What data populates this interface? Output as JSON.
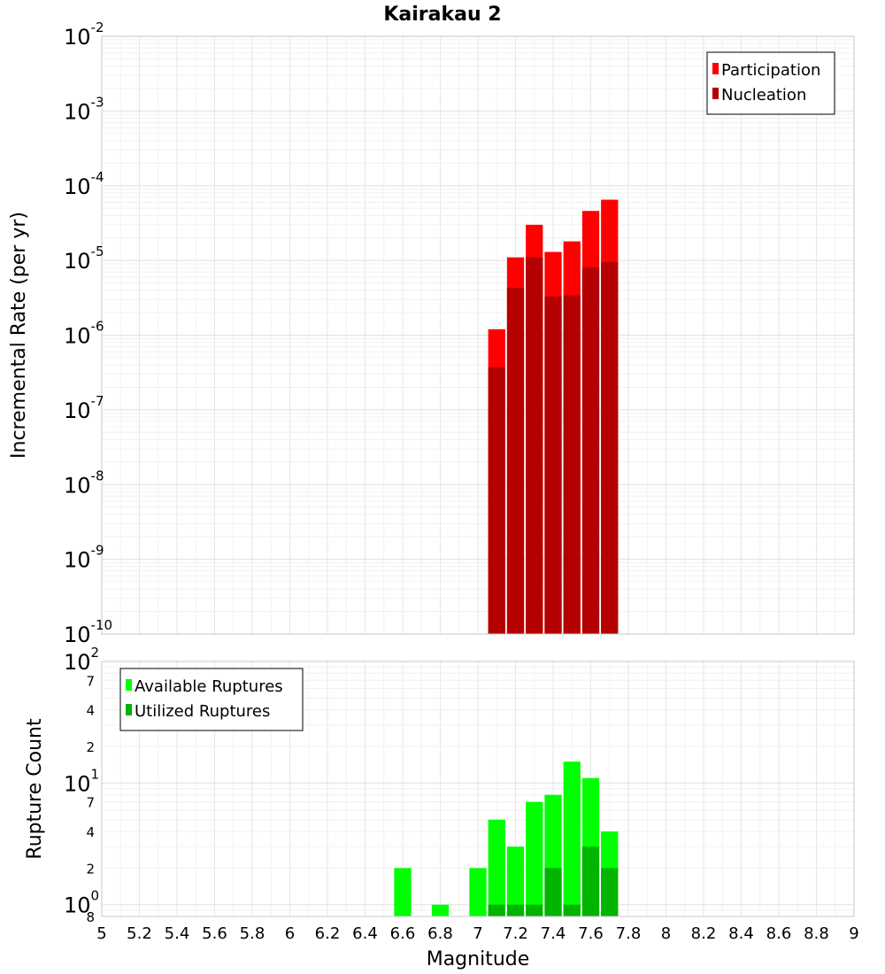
{
  "chart_data": [
    {
      "type": "bar",
      "title": "Kairakau 2",
      "ylabel": "Incremental Rate (per yr)",
      "xlabel": "",
      "x_scale": "linear",
      "y_scale": "log",
      "xlim": [
        5,
        9
      ],
      "ylim": [
        1e-10,
        0.01
      ],
      "bar_width": 0.1,
      "grid": true,
      "legend_position": "top-right",
      "y_tick_bases": [
        "10",
        "10",
        "10",
        "10",
        "10",
        "10",
        "10",
        "10",
        "10"
      ],
      "y_tick_exponents": [
        "-10",
        "-9",
        "-8",
        "-7",
        "-6",
        "-5",
        "-4",
        "-3",
        "-2"
      ],
      "x": [
        7.1,
        7.2,
        7.3,
        7.4,
        7.5,
        7.6,
        7.7
      ],
      "series": [
        {
          "name": "Participation",
          "color": "#ff0000",
          "values": [
            1.2e-06,
            1.1e-05,
            3e-05,
            1.3e-05,
            1.8e-05,
            4.6e-05,
            6.5e-05
          ]
        },
        {
          "name": "Nucleation",
          "color": "#b40000",
          "values": [
            3.7e-07,
            4.3e-06,
            1.1e-05,
            3.3e-06,
            3.4e-06,
            8e-06,
            9.5e-06
          ]
        }
      ]
    },
    {
      "type": "bar",
      "title": "",
      "ylabel": "Rupture Count",
      "xlabel": "Magnitude",
      "x_scale": "linear",
      "y_scale": "log",
      "xlim": [
        5,
        9
      ],
      "ylim": [
        0.8,
        100
      ],
      "bar_width": 0.1,
      "grid": true,
      "legend_position": "top-left",
      "x_ticks": [
        "5",
        "5.2",
        "5.4",
        "5.6",
        "5.8",
        "6",
        "6.2",
        "6.4",
        "6.6",
        "6.8",
        "7",
        "7.2",
        "7.4",
        "7.6",
        "7.8",
        "8",
        "8.2",
        "8.4",
        "8.6",
        "8.8",
        "9"
      ],
      "y_major_bases": [
        "10",
        "10",
        "10"
      ],
      "y_major_exponents": [
        "0",
        "1",
        "2"
      ],
      "y_minor_labels": [
        "8",
        "2",
        "4",
        "7",
        "2",
        "4",
        "7"
      ],
      "x": [
        6.6,
        6.8,
        7.0,
        7.1,
        7.2,
        7.3,
        7.4,
        7.5,
        7.6,
        7.7
      ],
      "series": [
        {
          "name": "Available Ruptures",
          "color": "#00ff00",
          "values": [
            2,
            1,
            2,
            5,
            3,
            7,
            8,
            15,
            11,
            4
          ]
        },
        {
          "name": "Utilized Ruptures",
          "color": "#00b400",
          "values": [
            0,
            0,
            0,
            1,
            1,
            1,
            2,
            1,
            3,
            2
          ]
        }
      ]
    }
  ]
}
